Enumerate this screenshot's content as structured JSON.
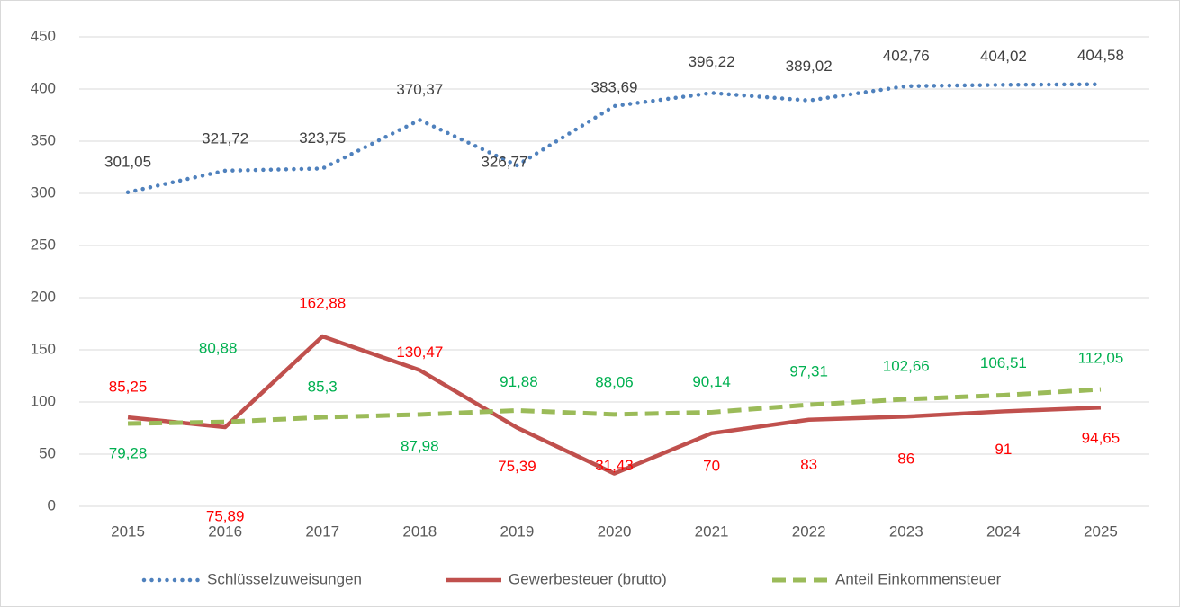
{
  "chart_data": {
    "type": "line",
    "categories": [
      "2015",
      "2016",
      "2017",
      "2018",
      "2019",
      "2020",
      "2021",
      "2022",
      "2023",
      "2024",
      "2025"
    ],
    "series": [
      {
        "name": "Schlüsselzuweisungen",
        "color": "#4f81bd",
        "label_color": "#404040",
        "line_style": "dotted",
        "values": [
          301.05,
          321.72,
          323.75,
          370.37,
          326.77,
          383.69,
          396.22,
          389.02,
          402.76,
          404.02,
          404.58
        ],
        "value_labels": [
          "301,05",
          "321,72",
          "323,75",
          "370,37",
          "326,77",
          "383,69",
          "396,22",
          "389,02",
          "402,76",
          "404,02",
          "404,58"
        ]
      },
      {
        "name": "Gewerbesteuer (brutto)",
        "color": "#c0504d",
        "label_color": "#ff0000",
        "line_style": "solid",
        "values": [
          85.25,
          75.89,
          162.88,
          130.47,
          75.39,
          31.43,
          70,
          83,
          86,
          91,
          94.65
        ],
        "value_labels": [
          "85,25",
          "75,89",
          "162,88",
          "130,47",
          "75,39",
          "31,43",
          "70",
          "83",
          "86",
          "91",
          "94,65"
        ]
      },
      {
        "name": "Anteil Einkommensteuer",
        "color": "#9bbb59",
        "label_color": "#00b050",
        "line_style": "dashed",
        "values": [
          79.28,
          80.88,
          85.3,
          87.98,
          91.88,
          88.06,
          90.14,
          97.31,
          102.66,
          106.51,
          112.05
        ],
        "value_labels": [
          "79,28",
          "80,88",
          "85,3",
          "87,98",
          "91,88",
          "88,06",
          "90,14",
          "97,31",
          "102,66",
          "106,51",
          "112,05"
        ]
      }
    ],
    "ylim": [
      0,
      450
    ],
    "yticks": [
      0,
      50,
      100,
      150,
      200,
      250,
      300,
      350,
      400,
      450
    ],
    "grid": true,
    "legend": "bottom"
  }
}
